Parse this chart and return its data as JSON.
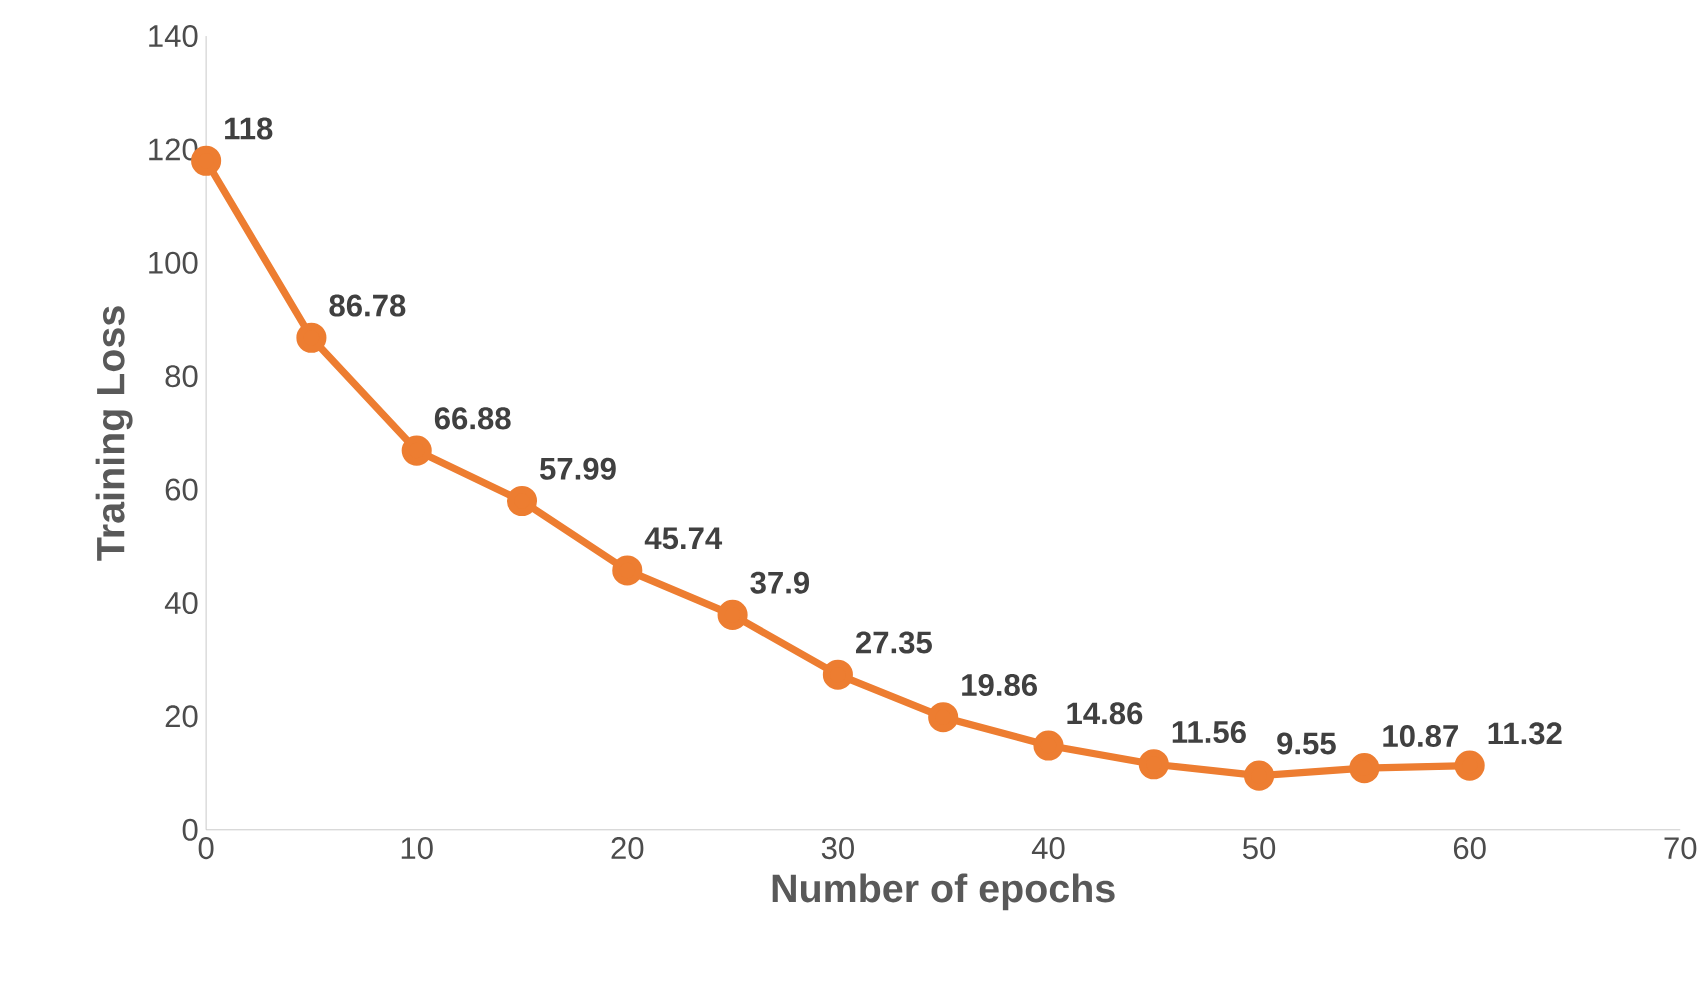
{
  "chart_data": {
    "type": "line",
    "xlabel": "Number of epochs",
    "ylabel": "Training Loss",
    "x": [
      0,
      5,
      10,
      15,
      20,
      25,
      30,
      35,
      40,
      45,
      50,
      55,
      60
    ],
    "values": [
      118,
      86.78,
      66.88,
      57.99,
      45.74,
      37.9,
      27.35,
      19.86,
      14.86,
      11.56,
      9.55,
      10.87,
      11.32
    ],
    "color": "#ed7d31",
    "marker": "circle",
    "data_labels": true,
    "xlim": [
      0,
      70
    ],
    "ylim": [
      0,
      140
    ],
    "xticks": [
      0,
      10,
      20,
      30,
      40,
      50,
      60,
      70
    ],
    "yticks": [
      0,
      20,
      40,
      60,
      80,
      100,
      120,
      140
    ]
  }
}
